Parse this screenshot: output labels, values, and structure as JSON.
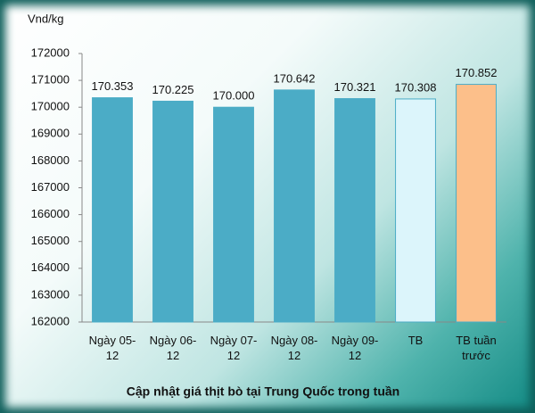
{
  "chart_data": {
    "type": "bar",
    "title": "Cập nhật giá thịt bò tại Trung Quốc trong tuần",
    "y_label": "Vnd/kg",
    "categories": [
      "Ngày 05-12",
      "Ngày 06-12",
      "Ngày 07-12",
      "Ngày 08-12",
      "Ngày 09-12",
      "TB",
      "TB tuần trước"
    ],
    "values": [
      170353,
      170225,
      170000,
      170642,
      170321,
      170308,
      170852
    ],
    "value_labels": [
      "170.353",
      "170.225",
      "170.000",
      "170.642",
      "170.321",
      "170.308",
      "170.852"
    ],
    "colors": [
      "#4bacc6",
      "#4bacc6",
      "#4bacc6",
      "#4bacc6",
      "#4bacc6",
      "#dcf5fb",
      "#fcbf8a"
    ],
    "ylim": [
      162000,
      172000
    ],
    "yticks": [
      162000,
      163000,
      164000,
      165000,
      166000,
      167000,
      168000,
      169000,
      170000,
      171000,
      172000
    ],
    "grid": false
  }
}
